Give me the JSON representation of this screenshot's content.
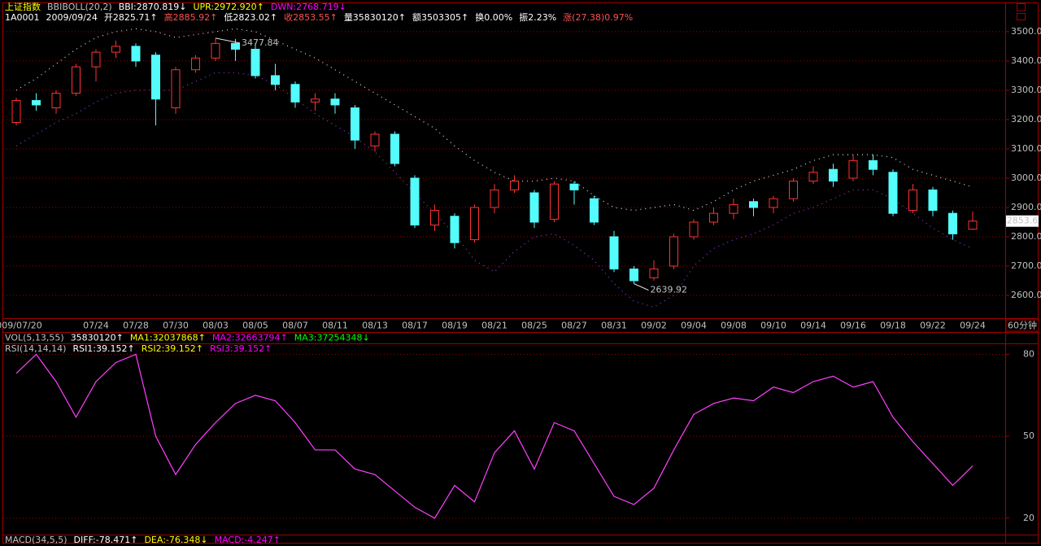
{
  "chart_data": [
    {
      "type": "candlestick",
      "header_line": [
        {
          "text": "上证指数",
          "color": "#ffff00"
        },
        {
          "text": "BBIBOLL(20,2)",
          "color": "#c0c0c0"
        },
        {
          "text": "BBI:2870.819↓",
          "color": "#ffffff"
        },
        {
          "text": "UPR:2972.920↑",
          "color": "#ffff00"
        },
        {
          "text": "DWN:2768.719↓",
          "color": "#ff00ff"
        }
      ],
      "info_line": [
        {
          "text": "1A0001",
          "color": "#ffffff"
        },
        {
          "text": "2009/09/24",
          "color": "#ffffff"
        },
        {
          "text": "开2825.71↑",
          "color": "#ffffff"
        },
        {
          "text": "高2885.92↑",
          "color": "#ff5050"
        },
        {
          "text": "低2823.02↑",
          "color": "#ffffff"
        },
        {
          "text": "收2853.55↑",
          "color": "#ff5050"
        },
        {
          "text": "量35830120↑",
          "color": "#ffffff"
        },
        {
          "text": "额3503305↑",
          "color": "#ffffff"
        },
        {
          "text": "换0.00%",
          "color": "#ffffff"
        },
        {
          "text": "振2.23%",
          "color": "#ffffff"
        },
        {
          "text": "涨(27.38)0.97%",
          "color": "#ff5050"
        }
      ],
      "volume_line": [
        {
          "text": "VOL(5,13,55)",
          "color": "#c0c0c0"
        },
        {
          "text": "35830120↑",
          "color": "#ffffff"
        },
        {
          "text": "MA1:32037868↑",
          "color": "#ffff00"
        },
        {
          "text": "MA2:32663794↑",
          "color": "#ff00ff"
        },
        {
          "text": "MA3:37254348↓",
          "color": "#00ff00"
        }
      ],
      "categories": [
        "2009/07/20",
        null,
        null,
        null,
        "07/24",
        null,
        "07/28",
        null,
        "07/30",
        null,
        "08/03",
        null,
        "08/05",
        null,
        "08/07",
        null,
        "08/11",
        null,
        "08/13",
        null,
        "08/17",
        null,
        "08/19",
        null,
        "08/21",
        null,
        "08/25",
        null,
        "08/27",
        null,
        "08/31",
        null,
        "09/02",
        null,
        "09/04",
        null,
        "09/08",
        null,
        "09/10",
        null,
        "09/14",
        null,
        "09/16",
        null,
        "09/18",
        null,
        "09/22",
        null,
        "09/24"
      ],
      "candles": {
        "open": [
          3190,
          3265,
          3240,
          3290,
          3380,
          3430,
          3450,
          3420,
          3240,
          3370,
          3410,
          3460,
          3440,
          3350,
          3320,
          3260,
          3270,
          3240,
          3110,
          3150,
          3000,
          2840,
          2870,
          2790,
          2900,
          2960,
          2950,
          2860,
          2980,
          2930,
          2800,
          2690,
          2660,
          2700,
          2800,
          2850,
          2880,
          2920,
          2900,
          2930,
          2990,
          3030,
          3000,
          3060,
          3020,
          2890,
          2960,
          2880,
          2825.71
        ],
        "high": [
          3275,
          3290,
          3300,
          3390,
          3440,
          3470,
          3460,
          3430,
          3380,
          3420,
          3477.84,
          3475,
          3460,
          3390,
          3330,
          3290,
          3290,
          3250,
          3160,
          3160,
          3010,
          2910,
          2880,
          2910,
          2980,
          3010,
          2960,
          2990,
          2990,
          2940,
          2820,
          2700,
          2720,
          2810,
          2860,
          2900,
          2930,
          2930,
          2940,
          3000,
          3040,
          3050,
          3080,
          3080,
          3030,
          2980,
          2970,
          2890,
          2885.92
        ],
        "low": [
          3180,
          3230,
          3220,
          3280,
          3330,
          3410,
          3380,
          3180,
          3220,
          3360,
          3400,
          3400,
          3340,
          3300,
          3240,
          3230,
          3220,
          3100,
          3090,
          3040,
          2830,
          2820,
          2760,
          2780,
          2880,
          2950,
          2830,
          2850,
          2910,
          2840,
          2680,
          2639.92,
          2650,
          2690,
          2790,
          2840,
          2860,
          2870,
          2880,
          2920,
          2980,
          2970,
          2990,
          3010,
          2870,
          2880,
          2870,
          2790,
          2823.02
        ],
        "close": [
          3265,
          3250,
          3290,
          3380,
          3430,
          3450,
          3400,
          3270,
          3370,
          3410,
          3460,
          3440,
          3350,
          3320,
          3260,
          3270,
          3250,
          3130,
          3150,
          3050,
          2840,
          2890,
          2780,
          2900,
          2960,
          2990,
          2850,
          2980,
          2960,
          2850,
          2690,
          2650,
          2690,
          2800,
          2850,
          2880,
          2910,
          2900,
          2930,
          2990,
          3020,
          2990,
          3060,
          3030,
          2880,
          2960,
          2890,
          2810,
          2853.55
        ]
      },
      "up_color": "#ff3232",
      "down_color": "#54fcfc",
      "bands": [
        {
          "color": "#e0e0e0",
          "values": [
            3300,
            3340,
            3390,
            3440,
            3480,
            3500,
            3510,
            3500,
            3480,
            3490,
            3500,
            3510,
            3500,
            3470,
            3440,
            3410,
            3370,
            3330,
            3290,
            3250,
            3210,
            3170,
            3110,
            3060,
            3020,
            2990,
            2990,
            3000,
            2990,
            2940,
            2900,
            2890,
            2900,
            2910,
            2890,
            2920,
            2960,
            2990,
            3010,
            3030,
            3060,
            3080,
            3080,
            3080,
            3070,
            3030,
            3010,
            2990,
            2970
          ]
        },
        {
          "color": "#9040d0",
          "values": [
            3110,
            3150,
            3190,
            3220,
            3260,
            3290,
            3300,
            3300,
            3300,
            3330,
            3360,
            3360,
            3350,
            3320,
            3270,
            3220,
            3180,
            3140,
            3090,
            3020,
            2950,
            2880,
            2810,
            2720,
            2680,
            2750,
            2800,
            2810,
            2770,
            2720,
            2640,
            2580,
            2560,
            2600,
            2700,
            2760,
            2790,
            2810,
            2840,
            2880,
            2900,
            2930,
            2960,
            2960,
            2930,
            2880,
            2830,
            2790,
            2760
          ]
        }
      ],
      "last_price_label": "2853.6",
      "period_label": "60分钟",
      "ylim": [
        2525,
        3547
      ],
      "yticks": [
        {
          "value": 2600,
          "label": "2600.00"
        },
        {
          "value": 2700,
          "label": "2700.00"
        },
        {
          "value": 2800,
          "label": "2800.00"
        },
        {
          "value": 2900,
          "label": "2900.00"
        },
        {
          "value": 3000,
          "label": "3000.00"
        },
        {
          "value": 3100,
          "label": "3100.00"
        },
        {
          "value": 3200,
          "label": "3200.00"
        },
        {
          "value": 3300,
          "label": "3300.00"
        },
        {
          "value": 3400,
          "label": "3400.00"
        },
        {
          "value": 3500,
          "label": "3500.00"
        }
      ],
      "grid": true,
      "grid_color": "#a00000"
    },
    {
      "type": "line",
      "title_line": [
        {
          "text": "RSI(14,14,14)",
          "color": "#c0c0c0"
        },
        {
          "text": "RSI1:39.152↑",
          "color": "#ffffff"
        },
        {
          "text": "RSI2:39.152↑",
          "color": "#ffff00"
        },
        {
          "text": "RSI3:39.152↑",
          "color": "#ff00ff"
        }
      ],
      "values": [
        73,
        80,
        70,
        57,
        70,
        77,
        80,
        50,
        36,
        47,
        55,
        62,
        65,
        63,
        55,
        45,
        45,
        38,
        36,
        30,
        24,
        20,
        32,
        26,
        44,
        52,
        38,
        55,
        52,
        40,
        28,
        25,
        31,
        45,
        58,
        62,
        64,
        63,
        68,
        66,
        70,
        72,
        68,
        70,
        57,
        48,
        40,
        32,
        39.152
      ],
      "color": "#ff40ff",
      "ylim": [
        14,
        84
      ],
      "yticks": [
        20,
        50,
        80
      ],
      "grid": true,
      "grid_color": "#a00000"
    }
  ],
  "macd_line": [
    {
      "text": "MACD(34,5,5)",
      "color": "#c0c0c0"
    },
    {
      "text": "DIFF:-78.471↑",
      "color": "#ffffff"
    },
    {
      "text": "DEA:-76.348↓",
      "color": "#ffff00"
    },
    {
      "text": "MACD:-4.247↑",
      "color": "#ff00ff"
    }
  ]
}
